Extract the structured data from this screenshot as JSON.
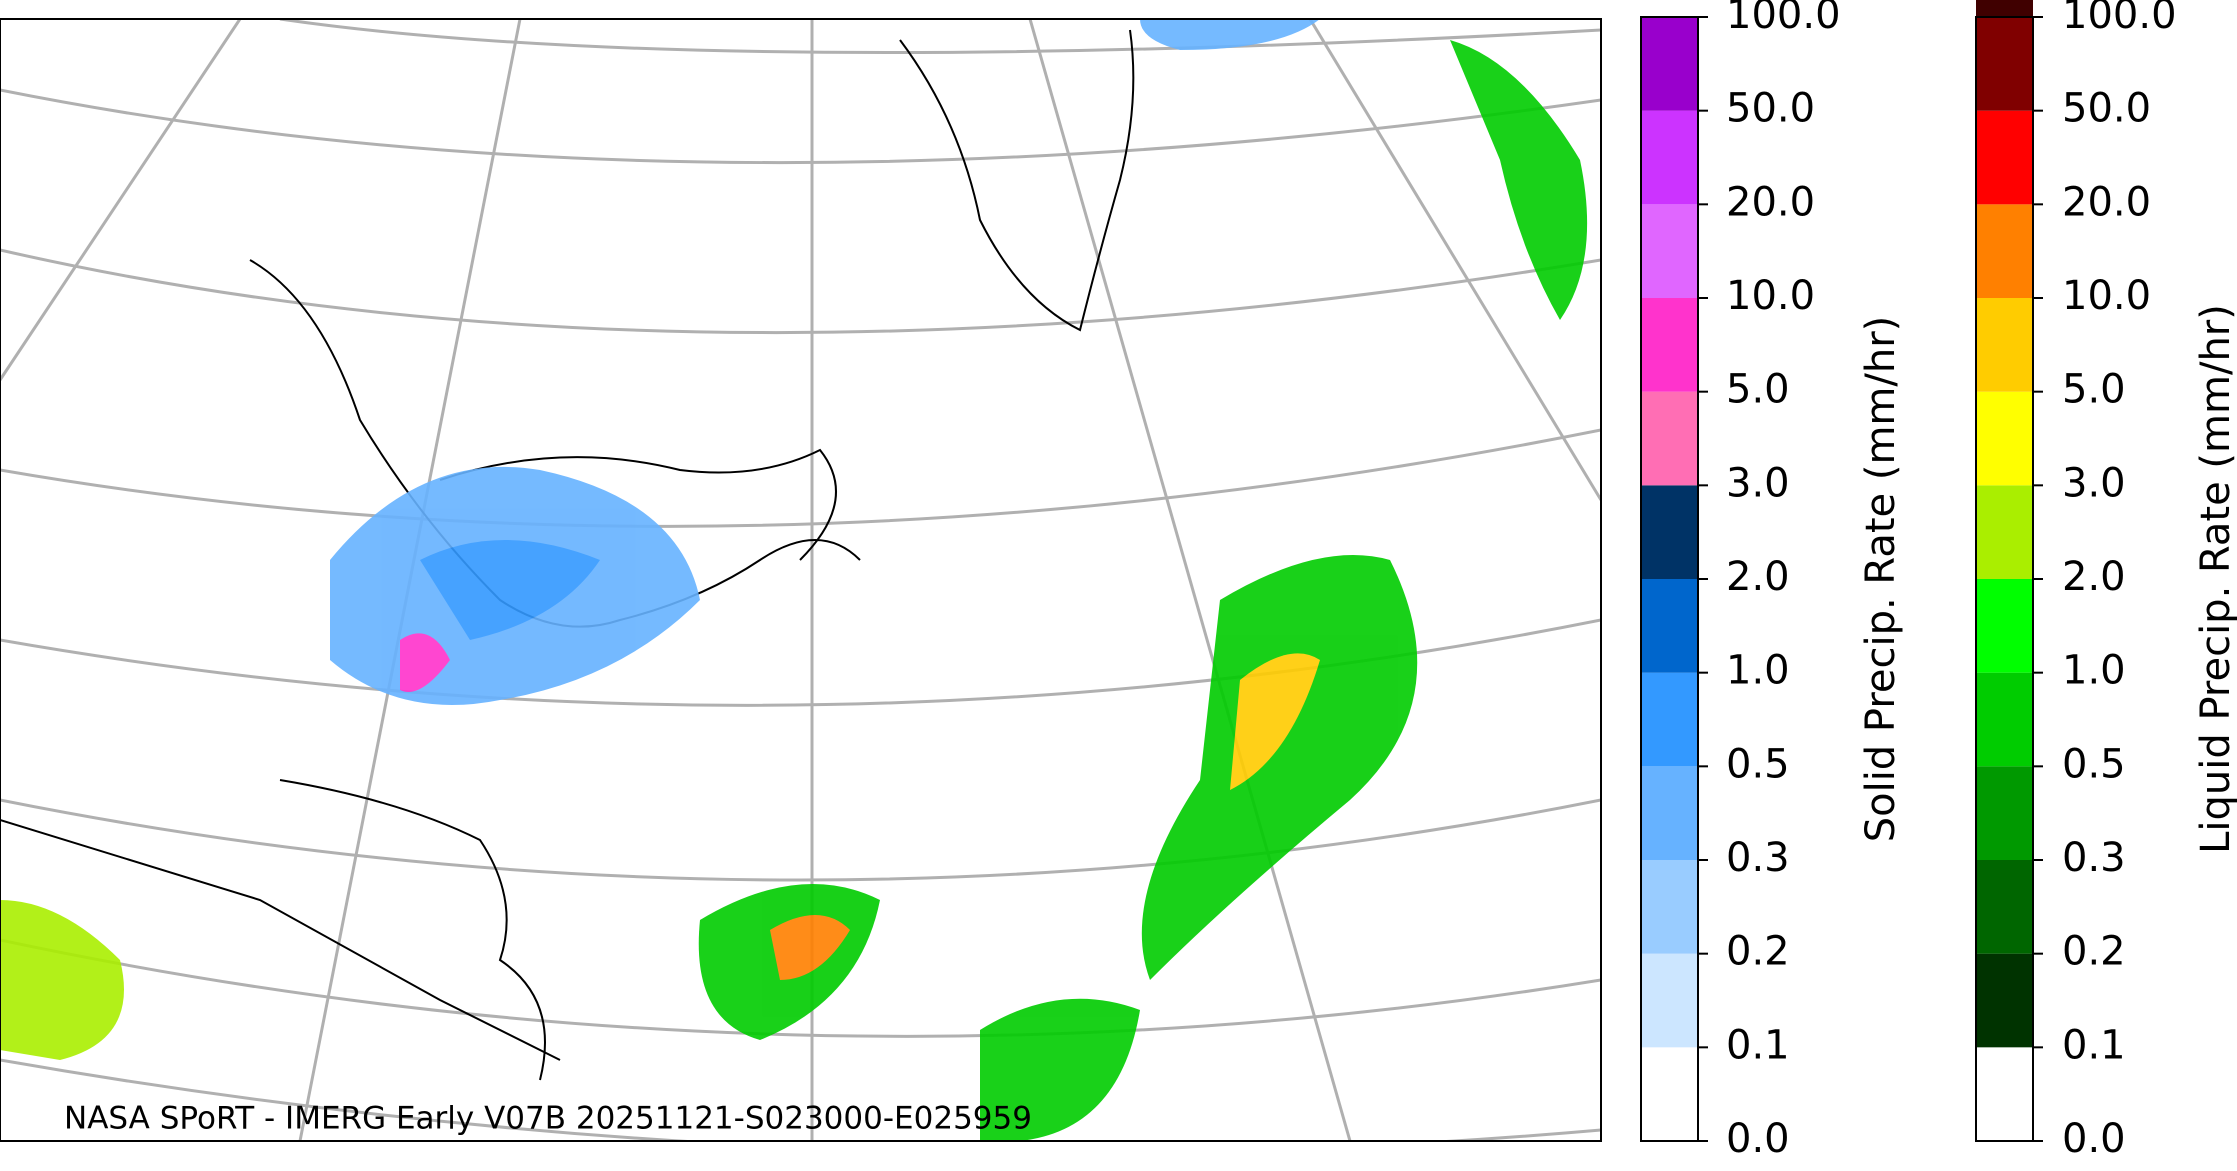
{
  "credit": "NASA SPoRT - IMERG Early V07B 20251121-S023000-E025959",
  "colorbars": [
    {
      "label": "Solid Precip. Rate (mm/hr)",
      "ticks": [
        {
          "value": 0,
          "label": "0.0"
        },
        {
          "value": 0.1,
          "label": "0.1"
        },
        {
          "value": 0.2,
          "label": "0.2"
        },
        {
          "value": 0.3,
          "label": "0.3"
        },
        {
          "value": 0.5,
          "label": "0.5"
        },
        {
          "value": 1,
          "label": "1.0"
        },
        {
          "value": 2,
          "label": "2.0"
        },
        {
          "value": 3,
          "label": "3.0"
        },
        {
          "value": 5,
          "label": "5.0"
        },
        {
          "value": 10,
          "label": "10.0"
        },
        {
          "value": 20,
          "label": "20.0"
        },
        {
          "value": 50,
          "label": "50.0"
        },
        {
          "value": 100,
          "label": "100.0"
        }
      ],
      "colors": [
        "#ffffff",
        "#cce6ff",
        "#99ccff",
        "#66b2ff",
        "#3399ff",
        "#0066cc",
        "#003366",
        "#ff6eb4",
        "#ff33cc",
        "#e066ff",
        "#cc33ff",
        "#9900cc"
      ]
    },
    {
      "label": "Liquid Precip. Rate (mm/hr)",
      "ticks": [
        {
          "value": 0,
          "label": "0.0"
        },
        {
          "value": 0.1,
          "label": "0.1"
        },
        {
          "value": 0.2,
          "label": "0.2"
        },
        {
          "value": 0.3,
          "label": "0.3"
        },
        {
          "value": 0.5,
          "label": "0.5"
        },
        {
          "value": 1,
          "label": "1.0"
        },
        {
          "value": 2,
          "label": "2.0"
        },
        {
          "value": 3,
          "label": "3.0"
        },
        {
          "value": 5,
          "label": "5.0"
        },
        {
          "value": 10,
          "label": "10.0"
        },
        {
          "value": 20,
          "label": "20.0"
        },
        {
          "value": 50,
          "label": "50.0"
        },
        {
          "value": 100,
          "label": "100.0"
        }
      ],
      "colors": [
        "#ffffff",
        "#003300",
        "#006600",
        "#009900",
        "#00cc00",
        "#00ff00",
        "#aaee00",
        "#ffff00",
        "#ffcc00",
        "#ff8000",
        "#ff0000",
        "#800000",
        "#400000"
      ]
    }
  ]
}
